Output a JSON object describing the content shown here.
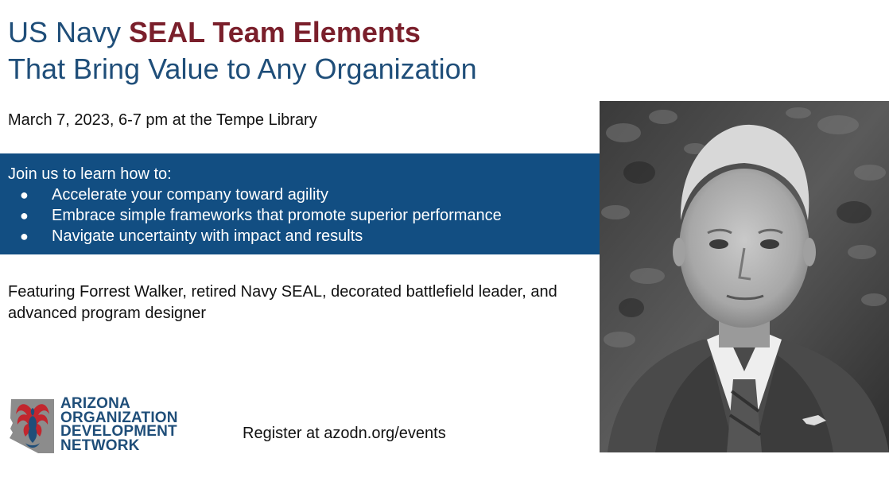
{
  "header": {
    "title_prefix": "US Navy ",
    "title_accent": "SEAL Team Elements",
    "title_line2": "That Bring Value to Any Organization"
  },
  "event": {
    "when_where": "March 7, 2023, 6-7 pm at the Tempe Library"
  },
  "agenda": {
    "intro": "Join us to learn how to:",
    "bullet": "●",
    "items": [
      "Accelerate your company toward agility",
      "Embrace simple frameworks that promote superior performance",
      "Navigate uncertainty with impact and results"
    ]
  },
  "featuring": "Featuring Forrest Walker, retired Navy SEAL, decorated battlefield leader, and advanced program designer",
  "logo": {
    "lines": [
      "ARIZONA",
      "ORGANIZATION",
      "DEVELOPMENT",
      "NETWORK"
    ],
    "icon": "arizona-phoenix-logo-icon"
  },
  "register": "Register at azodn.org/events",
  "photo": {
    "subject": "speaker-portrait"
  },
  "colors": {
    "title_blue": "#1f4e79",
    "accent_red": "#7a1f2b",
    "band_blue": "#124e82"
  }
}
